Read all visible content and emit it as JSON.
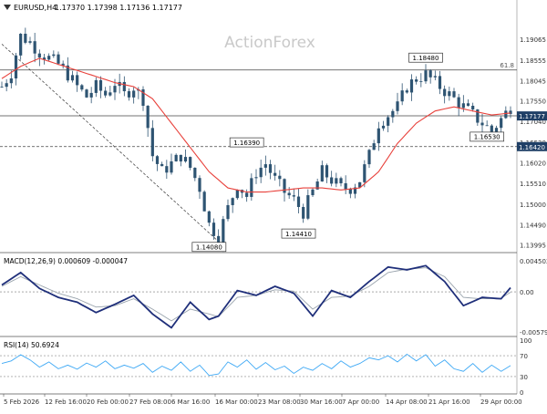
{
  "header": {
    "symbol": "EURUSD,H4",
    "ohlc": "1.17370 1.17398 1.17136 1.17177"
  },
  "watermark": "ActionForex",
  "colors": {
    "candle": "#2e5472",
    "ma": "#e8413b",
    "macd_main": "#1f2f7a",
    "macd_signal": "#9aa4ad",
    "rsi_line": "#3fa9f5",
    "axis_text": "#333333",
    "price_tag_bg": "#1f3f66"
  },
  "chart_data": [
    {
      "type": "candlestick",
      "panel": "price",
      "series_names": [
        "EURUSD,H4",
        "Moving Average"
      ],
      "ylim": [
        1.1385,
        1.197
      ],
      "y_ticks": [
        1.13995,
        1.1449,
        1.15,
        1.1551,
        1.1602,
        1.1653,
        1.1704,
        1.1755,
        1.18045,
        1.18555,
        1.19065
      ],
      "y_tick_labels": [
        "1.13995",
        "1.14490",
        "1.15000",
        "1.15510",
        "1.16020",
        "1.16530",
        "1.17040",
        "1.17550",
        "1.18045",
        "1.18555",
        "1.19065"
      ],
      "x_labels": [
        "5 Feb 2026",
        "12 Feb 16:00",
        "20 Feb 00:00",
        "27 Feb 08:00",
        "6 Mar 16:00",
        "16 Mar 00:00",
        "23 Mar 08:00",
        "30 Mar 16:00",
        "7 Apr 00:00",
        "14 Apr 08:00",
        "21 Apr 16:00",
        "29 Apr 00:00"
      ],
      "current_price": 1.17177,
      "current_price_label": "1.17177",
      "level_1.16420": "1.16420",
      "horizontal_levels": [
        {
          "value": 1.1831,
          "label": "61.8",
          "style": "solid"
        },
        {
          "value": 1.1718,
          "label": "",
          "style": "solid"
        },
        {
          "value": 1.1642,
          "label": "1.16420",
          "style": "dashed"
        }
      ],
      "trendline": {
        "from": [
          0,
          1.1895
        ],
        "to": [
          46,
          1.1408
        ],
        "style": "dashed"
      },
      "annotations": [
        {
          "text": "1.14080",
          "x": 44,
          "y": 1.1408
        },
        {
          "text": "1.16390",
          "x": 52,
          "y": 1.1639
        },
        {
          "text": "1.14410",
          "x": 63,
          "y": 1.1441
        },
        {
          "text": "1.18480",
          "x": 90,
          "y": 1.1848
        },
        {
          "text": "1.16530",
          "x": 103,
          "y": 1.1653
        }
      ],
      "close_points": [
        [
          0,
          1.179
        ],
        [
          2,
          1.1825
        ],
        [
          4,
          1.1915
        ],
        [
          6,
          1.19
        ],
        [
          8,
          1.1875
        ],
        [
          10,
          1.186
        ],
        [
          12,
          1.1845
        ],
        [
          14,
          1.182
        ],
        [
          16,
          1.179
        ],
        [
          18,
          1.1765
        ],
        [
          20,
          1.179
        ],
        [
          22,
          1.177
        ],
        [
          24,
          1.18
        ],
        [
          26,
          1.177
        ],
        [
          28,
          1.179
        ],
        [
          30,
          1.176
        ],
        [
          32,
          1.162
        ],
        [
          34,
          1.158
        ],
        [
          36,
          1.16
        ],
        [
          38,
          1.162
        ],
        [
          40,
          1.159
        ],
        [
          42,
          1.154
        ],
        [
          44,
          1.145
        ],
        [
          46,
          1.142
        ],
        [
          48,
          1.149
        ],
        [
          50,
          1.155
        ],
        [
          52,
          1.152
        ],
        [
          54,
          1.158
        ],
        [
          56,
          1.16
        ],
        [
          58,
          1.156
        ],
        [
          60,
          1.153
        ],
        [
          62,
          1.151
        ],
        [
          64,
          1.148
        ],
        [
          66,
          1.153
        ],
        [
          68,
          1.158
        ],
        [
          70,
          1.156
        ],
        [
          72,
          1.154
        ],
        [
          74,
          1.154
        ],
        [
          76,
          1.156
        ],
        [
          78,
          1.162
        ],
        [
          80,
          1.17
        ],
        [
          82,
          1.172
        ],
        [
          84,
          1.174
        ],
        [
          86,
          1.179
        ],
        [
          88,
          1.181
        ],
        [
          90,
          1.182
        ],
        [
          92,
          1.18
        ],
        [
          94,
          1.178
        ],
        [
          96,
          1.176
        ],
        [
          98,
          1.174
        ],
        [
          100,
          1.172
        ],
        [
          102,
          1.17
        ],
        [
          104,
          1.168
        ],
        [
          106,
          1.171
        ],
        [
          108,
          1.174
        ]
      ],
      "ma_points": [
        [
          0,
          1.181
        ],
        [
          4,
          1.184
        ],
        [
          8,
          1.186
        ],
        [
          12,
          1.1845
        ],
        [
          16,
          1.183
        ],
        [
          20,
          1.1815
        ],
        [
          24,
          1.18
        ],
        [
          28,
          1.179
        ],
        [
          32,
          1.176
        ],
        [
          36,
          1.17
        ],
        [
          40,
          1.164
        ],
        [
          44,
          1.158
        ],
        [
          48,
          1.154
        ],
        [
          52,
          1.153
        ],
        [
          56,
          1.153
        ],
        [
          60,
          1.1535
        ],
        [
          64,
          1.154
        ],
        [
          68,
          1.154
        ],
        [
          72,
          1.1535
        ],
        [
          76,
          1.154
        ],
        [
          80,
          1.158
        ],
        [
          84,
          1.165
        ],
        [
          88,
          1.17
        ],
        [
          92,
          1.173
        ],
        [
          96,
          1.174
        ],
        [
          100,
          1.173
        ],
        [
          104,
          1.172
        ],
        [
          108,
          1.1725
        ]
      ]
    },
    {
      "type": "line",
      "panel": "macd",
      "title": "MACD(12,26,9) 0.000609 -0.000047",
      "ylim": [
        -0.0062,
        0.0049
      ],
      "y_ticks": [
        0.004502,
        0.0,
        -0.005791
      ],
      "y_tick_labels": [
        "0.004502",
        "0.00",
        "-0.005791"
      ],
      "series": [
        {
          "values_xy": [
            [
              0,
              0.001
            ],
            [
              4,
              0.0028
            ],
            [
              8,
              0.0005
            ],
            [
              12,
              -0.0008
            ],
            [
              16,
              -0.0015
            ],
            [
              20,
              -0.003
            ],
            [
              24,
              -0.0018
            ],
            [
              28,
              -0.0005
            ],
            [
              32,
              -0.0032
            ],
            [
              36,
              -0.0052
            ],
            [
              40,
              -0.0015
            ],
            [
              44,
              -0.004
            ],
            [
              46,
              -0.0035
            ],
            [
              50,
              0.0002
            ],
            [
              54,
              -0.0005
            ],
            [
              58,
              0.0008
            ],
            [
              62,
              -0.0002
            ],
            [
              66,
              -0.0035
            ],
            [
              70,
              0.0002
            ],
            [
              74,
              -0.0008
            ],
            [
              78,
              0.0015
            ],
            [
              82,
              0.0036
            ],
            [
              86,
              0.0032
            ],
            [
              90,
              0.0038
            ],
            [
              94,
              0.0015
            ],
            [
              98,
              -0.002
            ],
            [
              102,
              -0.0008
            ],
            [
              106,
              -0.001
            ],
            [
              108,
              0.0006
            ]
          ]
        },
        {
          "values_xy": [
            [
              0,
              0.0008
            ],
            [
              4,
              0.0022
            ],
            [
              8,
              0.001
            ],
            [
              12,
              -0.0002
            ],
            [
              16,
              -0.001
            ],
            [
              20,
              -0.0022
            ],
            [
              24,
              -0.002
            ],
            [
              28,
              -0.001
            ],
            [
              32,
              -0.0025
            ],
            [
              36,
              -0.0042
            ],
            [
              40,
              -0.0025
            ],
            [
              44,
              -0.0032
            ],
            [
              46,
              -0.0036
            ],
            [
              50,
              -0.0008
            ],
            [
              54,
              -0.0005
            ],
            [
              58,
              0.0003
            ],
            [
              62,
              0.0001
            ],
            [
              66,
              -0.0025
            ],
            [
              70,
              -0.0008
            ],
            [
              74,
              -0.0006
            ],
            [
              78,
              0.0008
            ],
            [
              82,
              0.0028
            ],
            [
              86,
              0.0033
            ],
            [
              90,
              0.0035
            ],
            [
              94,
              0.0022
            ],
            [
              98,
              -0.0008
            ],
            [
              102,
              -0.001
            ],
            [
              106,
              -0.0009
            ],
            [
              108,
              -5e-05
            ]
          ]
        }
      ]
    },
    {
      "type": "line",
      "panel": "rsi",
      "title": "RSI(14) 50.6924",
      "ylim": [
        0,
        100
      ],
      "y_ticks": [
        100,
        70,
        30,
        0
      ],
      "y_tick_labels": [
        "100",
        "70",
        "30",
        "0"
      ],
      "levels": [
        70,
        30
      ],
      "series": [
        {
          "values_xy": [
            [
              0,
              55
            ],
            [
              2,
              60
            ],
            [
              4,
              72
            ],
            [
              6,
              62
            ],
            [
              8,
              48
            ],
            [
              10,
              58
            ],
            [
              12,
              45
            ],
            [
              14,
              52
            ],
            [
              16,
              44
            ],
            [
              18,
              56
            ],
            [
              20,
              48
            ],
            [
              22,
              60
            ],
            [
              24,
              45
            ],
            [
              26,
              52
            ],
            [
              28,
              46
            ],
            [
              30,
              55
            ],
            [
              32,
              38
            ],
            [
              34,
              50
            ],
            [
              36,
              42
            ],
            [
              38,
              58
            ],
            [
              40,
              40
            ],
            [
              42,
              52
            ],
            [
              44,
              32
            ],
            [
              46,
              35
            ],
            [
              48,
              58
            ],
            [
              50,
              48
            ],
            [
              52,
              62
            ],
            [
              54,
              44
            ],
            [
              56,
              57
            ],
            [
              58,
              43
            ],
            [
              60,
              50
            ],
            [
              62,
              36
            ],
            [
              64,
              48
            ],
            [
              66,
              42
            ],
            [
              68,
              55
            ],
            [
              70,
              45
            ],
            [
              72,
              60
            ],
            [
              74,
              48
            ],
            [
              76,
              55
            ],
            [
              78,
              66
            ],
            [
              80,
              62
            ],
            [
              82,
              70
            ],
            [
              84,
              58
            ],
            [
              86,
              73
            ],
            [
              88,
              60
            ],
            [
              90,
              72
            ],
            [
              92,
              50
            ],
            [
              94,
              62
            ],
            [
              96,
              45
            ],
            [
              98,
              40
            ],
            [
              100,
              55
            ],
            [
              102,
              38
            ],
            [
              104,
              52
            ],
            [
              106,
              40
            ],
            [
              108,
              51
            ]
          ]
        }
      ]
    }
  ]
}
